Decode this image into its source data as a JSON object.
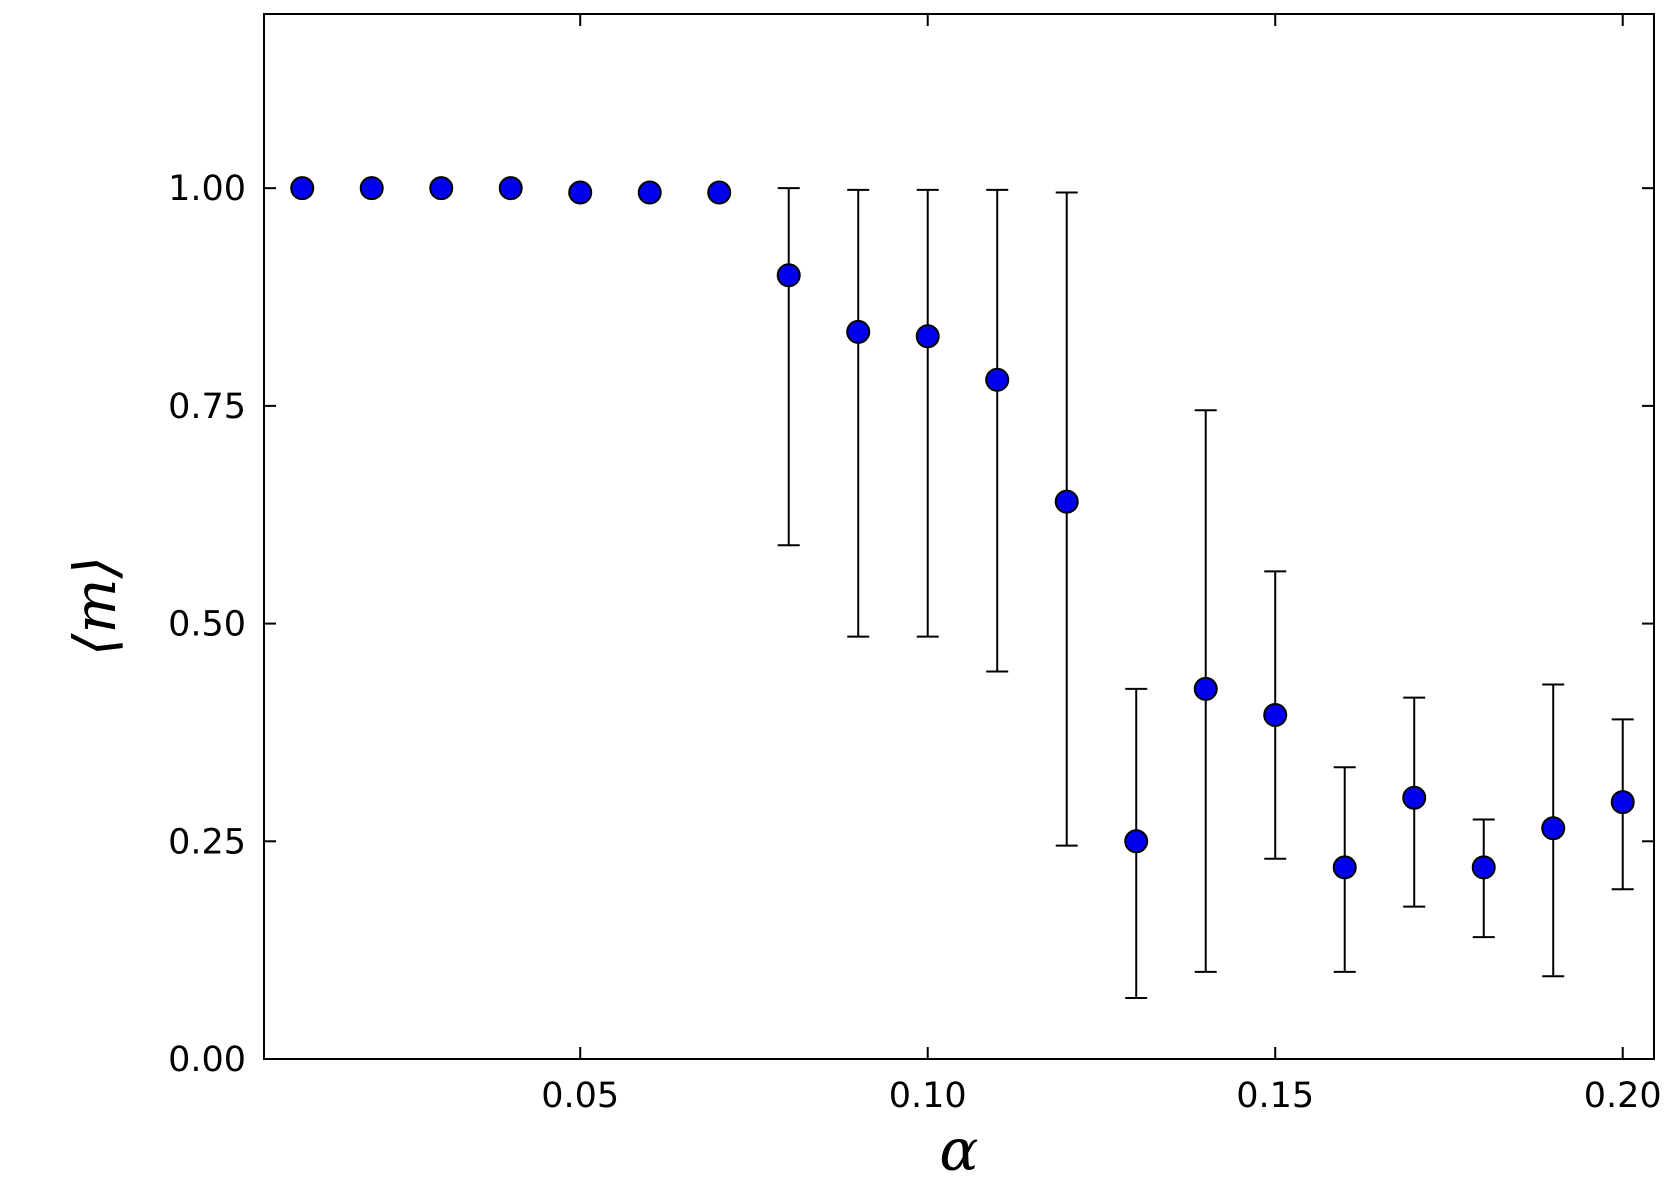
{
  "chart_data": {
    "type": "scatter",
    "xlabel": "α",
    "ylabel": "⟨m⟩",
    "xlim": [
      0.0045,
      0.2045
    ],
    "ylim": [
      0.0,
      1.2
    ],
    "xticks": [
      0.05,
      0.1,
      0.15,
      0.2
    ],
    "xtick_labels": [
      "0.05",
      "0.10",
      "0.15",
      "0.20"
    ],
    "yticks": [
      0.0,
      0.25,
      0.5,
      0.75,
      1.0
    ],
    "ytick_labels": [
      "0.00",
      "0.25",
      "0.50",
      "0.75",
      "1.00"
    ],
    "grid": false,
    "legend": "none",
    "marker_color": "#0000ee",
    "marker_edge_color": "#000000",
    "errorbar_color": "#000000",
    "series": [
      {
        "x": [
          0.01,
          0.02,
          0.03,
          0.04,
          0.05,
          0.06,
          0.07,
          0.08,
          0.09,
          0.1,
          0.11,
          0.12,
          0.13,
          0.14,
          0.15,
          0.16,
          0.17,
          0.18,
          0.19,
          0.2
        ],
        "y": [
          1.0,
          1.0,
          1.0,
          1.0,
          0.995,
          0.995,
          0.995,
          0.9,
          0.835,
          0.83,
          0.78,
          0.64,
          0.25,
          0.425,
          0.395,
          0.22,
          0.3,
          0.22,
          0.265,
          0.295
        ],
        "y_err_low": [
          null,
          null,
          null,
          null,
          null,
          null,
          null,
          0.59,
          0.485,
          0.485,
          0.445,
          0.245,
          0.07,
          0.1,
          0.23,
          0.1,
          0.175,
          0.14,
          0.095,
          0.195
        ],
        "y_err_high": [
          null,
          null,
          null,
          null,
          null,
          null,
          null,
          1.0,
          0.998,
          0.998,
          0.998,
          0.995,
          0.425,
          0.745,
          0.56,
          0.335,
          0.415,
          0.275,
          0.43,
          0.39
        ]
      }
    ]
  }
}
